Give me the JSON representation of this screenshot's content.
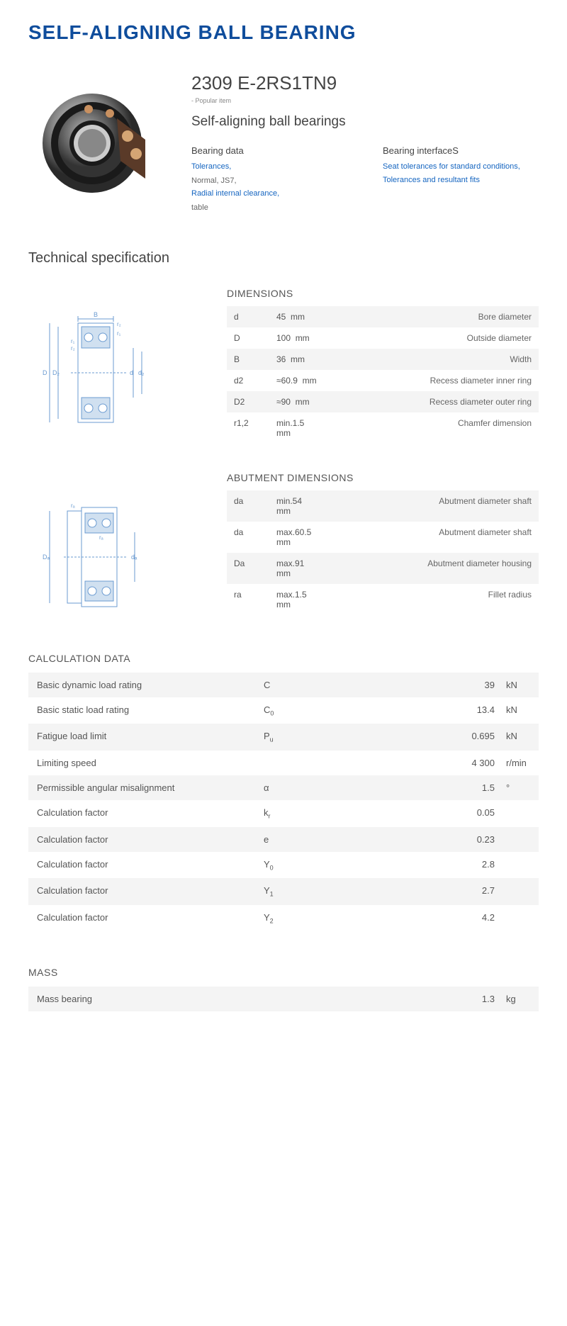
{
  "title": "SELF-ALIGNING BALL BEARING",
  "product": {
    "code": "2309 E-2RS1TN9",
    "popular": "- Popular item",
    "name": "Self-aligning ball bearings"
  },
  "bearingData": {
    "heading": "Bearing data",
    "items": [
      {
        "text": "Tolerances,",
        "link": true
      },
      {
        "text": "Normal, JS7,",
        "link": false
      },
      {
        "text": "Radial internal clearance,",
        "link": true
      },
      {
        "text": "table",
        "link": false
      }
    ]
  },
  "bearingInterface": {
    "heading": "Bearing interfaceS",
    "items": [
      {
        "text": "Seat tolerances for standard conditions,",
        "link": true
      },
      {
        "text": "Tolerances and resultant fits",
        "link": true
      }
    ]
  },
  "techSpec": "Technical specification",
  "dimensions": {
    "heading": "DIMENSIONS",
    "rows": [
      {
        "sym": "d",
        "val": "45",
        "unit": "mm",
        "desc": "Bore diameter"
      },
      {
        "sym": "D",
        "val": "100",
        "unit": "mm",
        "desc": "Outside diameter"
      },
      {
        "sym": "B",
        "val": "36",
        "unit": "mm",
        "desc": "Width"
      },
      {
        "sym": "d2",
        "val": "≈60.9",
        "unit": "mm",
        "desc": "Recess diameter inner ring"
      },
      {
        "sym": "D2",
        "val": "≈90",
        "unit": "mm",
        "desc": "Recess diameter outer ring"
      },
      {
        "sym": "r1,2",
        "val": "min.1.5",
        "unit": "mm",
        "desc": "Chamfer dimension"
      }
    ]
  },
  "abutment": {
    "heading": "ABUTMENT DIMENSIONS",
    "rows": [
      {
        "sym": "da",
        "val": "min.54",
        "unit": "mm",
        "desc": "Abutment diameter shaft"
      },
      {
        "sym": "da",
        "val": "max.60.5",
        "unit": "mm",
        "desc": "Abutment diameter shaft"
      },
      {
        "sym": "Da",
        "val": "max.91",
        "unit": "mm",
        "desc": "Abutment diameter housing"
      },
      {
        "sym": "ra",
        "val": "max.1.5",
        "unit": "mm",
        "desc": "Fillet radius"
      }
    ]
  },
  "calculation": {
    "heading": "CALCULATION DATA",
    "rows": [
      {
        "label": "Basic dynamic load rating",
        "sym": "C",
        "sub": "",
        "val": "39",
        "unit": "kN"
      },
      {
        "label": "Basic static load rating",
        "sym": "C",
        "sub": "0",
        "val": "13.4",
        "unit": "kN"
      },
      {
        "label": "Fatigue load limit",
        "sym": "P",
        "sub": "u",
        "val": "0.695",
        "unit": "kN"
      },
      {
        "label": "Limiting speed",
        "sym": "",
        "sub": "",
        "val": "4 300",
        "unit": "r/min"
      },
      {
        "label": "Permissible angular misalignment",
        "sym": "α",
        "sub": "",
        "val": "1.5",
        "unit": "°"
      },
      {
        "label": "Calculation factor",
        "sym": "k",
        "sub": "r",
        "val": "0.05",
        "unit": ""
      },
      {
        "label": "Calculation factor",
        "sym": "e",
        "sub": "",
        "val": "0.23",
        "unit": ""
      },
      {
        "label": "Calculation factor",
        "sym": "Y",
        "sub": "0",
        "val": "2.8",
        "unit": ""
      },
      {
        "label": "Calculation factor",
        "sym": "Y",
        "sub": "1",
        "val": "2.7",
        "unit": ""
      },
      {
        "label": "Calculation factor",
        "sym": "Y",
        "sub": "2",
        "val": "4.2",
        "unit": ""
      }
    ]
  },
  "mass": {
    "heading": "MASS",
    "rows": [
      {
        "label": "Mass bearing",
        "sym": "",
        "sub": "",
        "val": "1.3",
        "unit": "kg"
      }
    ]
  },
  "colors": {
    "title": "#0f4d9c",
    "link": "#1565c0",
    "text": "#444",
    "altRow": "#f4f4f4",
    "diagram": "#6b9bd1"
  }
}
